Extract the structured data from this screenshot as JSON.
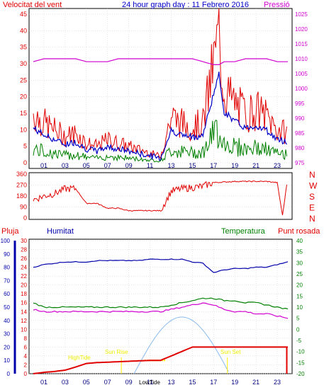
{
  "colors": {
    "wind": "#e00000",
    "wind_avg": "#0000c8",
    "wind_green": "#008000",
    "pressure": "#d000d0",
    "humidity": "#0000aa",
    "temperature": "#008000",
    "dewpoint": "#d000d0",
    "rain": "#e00000",
    "sun": "#88bbee",
    "marker": "#ffee00",
    "frame": "#000000",
    "grid": "#cccccc",
    "title": "#0000c8"
  },
  "header": {
    "title": "24 hour graph day : 11 Febrero 2016",
    "left_label": "Velocitat del vent",
    "right_label": "Pressió"
  },
  "legend": {
    "pluja": "Pluja",
    "humitat": "Humitat",
    "temperatura": "Temperatura",
    "punt_rosada": "Punt rosada"
  },
  "events": {
    "sunrise": "Sun Rise",
    "sunset": "Sun Set",
    "hightide": "HighTide",
    "lowtide": "LowTide"
  },
  "chart_data": [
    {
      "type": "line",
      "name": "wind-pressure",
      "x": [
        0,
        1,
        2,
        3,
        4,
        5,
        6,
        7,
        8,
        9,
        10,
        11,
        12,
        13,
        14,
        15,
        16,
        17,
        17.5,
        18,
        19,
        20,
        21,
        22,
        23,
        24
      ],
      "series": [
        {
          "name": "Velocitat del vent",
          "values": [
            15,
            12,
            10,
            8,
            9,
            6,
            5,
            7,
            6,
            5,
            4,
            3,
            2,
            14,
            12,
            11,
            12,
            30,
            38,
            22,
            18,
            15,
            16,
            14,
            10,
            9
          ]
        },
        {
          "name": "Pressió",
          "values": [
            1009,
            1010,
            1010,
            1010,
            1010,
            1009,
            1009,
            1009,
            1010,
            1010,
            1010,
            1010,
            1010,
            1010,
            1010,
            1010,
            1009,
            1008,
            1008,
            1009,
            1009,
            1010,
            1010,
            1010,
            1009,
            1009
          ]
        }
      ],
      "title": "24 hour graph day : 11 Febrero 2016",
      "ylabel": "Velocitat del vent",
      "y2label": "Pressió",
      "ylim": [
        0,
        45
      ],
      "y2lim": [
        975,
        1025
      ],
      "xticks": [
        "01",
        "03",
        "05",
        "07",
        "09",
        "11",
        "13",
        "15",
        "17",
        "19",
        "21",
        "23"
      ]
    },
    {
      "type": "line",
      "name": "wind-direction",
      "x": [
        0,
        1,
        2,
        3,
        4,
        5,
        6,
        7,
        8,
        9,
        10,
        11,
        12,
        13,
        14,
        15,
        16,
        17,
        18,
        19,
        20,
        21,
        22,
        23,
        23.5,
        24
      ],
      "values": [
        150,
        180,
        200,
        240,
        240,
        120,
        120,
        80,
        80,
        60,
        60,
        60,
        60,
        220,
        240,
        250,
        260,
        290,
        295,
        300,
        300,
        300,
        300,
        290,
        20,
        340
      ],
      "ylim": [
        0,
        360
      ],
      "yticks": [
        "0",
        "90",
        "180",
        "270",
        "360"
      ],
      "y2ticks": [
        "N",
        "W",
        "S",
        "E",
        "N"
      ]
    },
    {
      "type": "line",
      "name": "humidity-temperature-rain",
      "x": [
        0,
        1,
        2,
        3,
        4,
        5,
        6,
        7,
        8,
        9,
        10,
        11,
        12,
        13,
        14,
        15,
        16,
        17,
        18,
        19,
        20,
        21,
        22,
        23,
        24
      ],
      "series": [
        {
          "name": "Humitat",
          "values": [
            80,
            82,
            83,
            84,
            84,
            84,
            85,
            85,
            85,
            85,
            85,
            86,
            86,
            86,
            86,
            84,
            83,
            76,
            78,
            79,
            79,
            80,
            80,
            82,
            84
          ]
        },
        {
          "name": "Temperatura",
          "values": [
            12,
            10,
            10,
            10,
            10,
            10,
            10,
            10,
            10,
            10,
            10,
            10,
            10,
            11,
            12,
            13,
            14,
            14,
            13,
            13,
            12,
            12,
            11,
            10,
            9
          ]
        },
        {
          "name": "Punt rosada",
          "values": [
            9,
            8,
            8,
            8,
            8,
            8,
            8,
            8,
            8,
            8,
            8,
            8,
            8,
            9,
            10,
            11,
            12,
            11,
            9,
            8,
            8,
            7,
            7,
            6,
            5
          ]
        },
        {
          "name": "Pluja",
          "values": [
            0,
            0.3,
            0.5,
            0.8,
            1.5,
            2.3,
            2.5,
            2.6,
            2.7,
            2.8,
            2.9,
            3,
            3,
            4,
            5,
            6,
            6,
            6,
            6,
            6,
            6,
            6,
            6,
            6,
            6
          ]
        }
      ],
      "left_ticks_humidity": [
        "0",
        "10",
        "20",
        "30",
        "40",
        "50",
        "60",
        "70",
        "80",
        "90",
        "100"
      ],
      "left_ticks_rain": [
        "0",
        "2",
        "4",
        "6",
        "8",
        "10",
        "12",
        "14",
        "16",
        "18",
        "20",
        "22",
        "24",
        "26",
        "28",
        "30"
      ],
      "right_ticks_temp": [
        "-20",
        "-15",
        "-10",
        "-5",
        "0",
        "5",
        "10",
        "15",
        "20",
        "25",
        "30",
        "35",
        "40"
      ],
      "xticks": [
        "01",
        "03",
        "05",
        "07",
        "09",
        "11",
        "13",
        "15",
        "17",
        "19",
        "21",
        "23"
      ]
    }
  ]
}
